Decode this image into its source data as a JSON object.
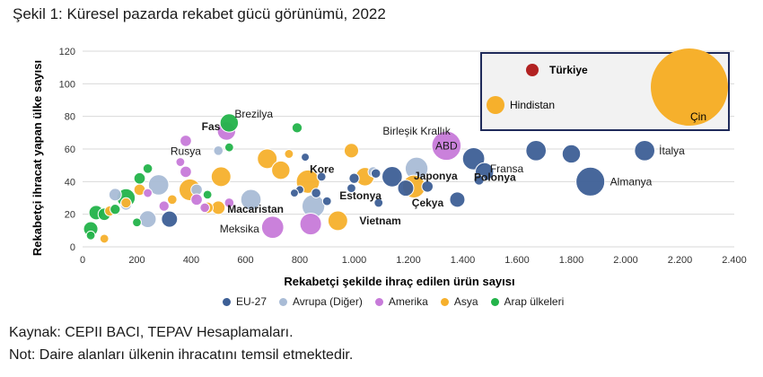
{
  "title": "Şekil 1: Küresel pazarda rekabet gücü görünümü, 2022",
  "source": "Kaynak: CEPII BACI, TEPAV Hesaplamaları.",
  "note": "Not: Daire alanları ülkenin ihracatını temsil etmektedir.",
  "colors": {
    "EU-27": "#3d5f96",
    "Avrupa (Diğer)": "#a9bcd6",
    "Amerika": "#c77ad9",
    "Asya": "#f6b02c",
    "Arap ülkeleri": "#23b34a",
    "Türkiye": "#b22222"
  },
  "legend": [
    {
      "key": "EU-27",
      "label": "EU-27"
    },
    {
      "key": "Avrupa (Diğer)",
      "label": "Avrupa (Diğer)"
    },
    {
      "key": "Amerika",
      "label": "Amerika"
    },
    {
      "key": "Asya",
      "label": "Asya"
    },
    {
      "key": "Arap ülkeleri",
      "label": "Arap ülkeleri"
    }
  ],
  "chart_data": {
    "type": "scatter",
    "xlabel": "Rekabetçi şekilde ihraç edilen ürün sayısı",
    "ylabel": "Rekabetçi ihracat yapan ülke sayısı",
    "xlim": [
      0,
      2400
    ],
    "ylim": [
      0,
      120
    ],
    "xticks": [
      "0",
      "200",
      "400",
      "600",
      "800",
      "1.000",
      "1.200",
      "1.400",
      "1.600",
      "1.800",
      "2.000",
      "2.200",
      "2.400"
    ],
    "yticks": [
      "0",
      "20",
      "40",
      "60",
      "80",
      "100",
      "120"
    ],
    "legend_position": "bottom",
    "inset": {
      "labels": [
        "Türkiye",
        "Hindistan",
        "Çin"
      ]
    },
    "points": [
      {
        "x": 1870,
        "y": 40,
        "size": 3.2,
        "group": "EU-27",
        "label": "Almanya"
      },
      {
        "x": 2070,
        "y": 59,
        "size": 1.6,
        "group": "EU-27",
        "label": "İtalya"
      },
      {
        "x": 1800,
        "y": 57,
        "size": 1.3,
        "group": "EU-27"
      },
      {
        "x": 1670,
        "y": 59,
        "size": 1.6,
        "group": "EU-27",
        "label": "Fransa"
      },
      {
        "x": 1480,
        "y": 46,
        "size": 1.3,
        "group": "EU-27",
        "label": "Polonya"
      },
      {
        "x": 1440,
        "y": 54,
        "size": 1.9,
        "group": "EU-27"
      },
      {
        "x": 1460,
        "y": 41,
        "size": 0.4,
        "group": "EU-27"
      },
      {
        "x": 1380,
        "y": 29,
        "size": 0.9,
        "group": "EU-27"
      },
      {
        "x": 1270,
        "y": 37,
        "size": 0.5,
        "group": "EU-27",
        "label": "Çekya"
      },
      {
        "x": 1140,
        "y": 43,
        "size": 1.6,
        "group": "EU-27"
      },
      {
        "x": 1190,
        "y": 36,
        "size": 1.0,
        "group": "EU-27"
      },
      {
        "x": 1080,
        "y": 45,
        "size": 0.35,
        "group": "EU-27"
      },
      {
        "x": 1000,
        "y": 42,
        "size": 0.4,
        "group": "EU-27"
      },
      {
        "x": 990,
        "y": 36,
        "size": 0.3,
        "group": "EU-27"
      },
      {
        "x": 900,
        "y": 28,
        "size": 0.3,
        "group": "EU-27"
      },
      {
        "x": 860,
        "y": 33,
        "size": 0.35,
        "group": "EU-27"
      },
      {
        "x": 880,
        "y": 43,
        "size": 0.3,
        "group": "EU-27"
      },
      {
        "x": 800,
        "y": 35,
        "size": 0.25,
        "group": "EU-27"
      },
      {
        "x": 780,
        "y": 33,
        "size": 0.25,
        "group": "EU-27"
      },
      {
        "x": 820,
        "y": 55,
        "size": 0.25,
        "group": "EU-27"
      },
      {
        "x": 1090,
        "y": 27,
        "size": 0.3,
        "group": "EU-27"
      },
      {
        "x": 320,
        "y": 17,
        "size": 1.0,
        "group": "EU-27"
      },
      {
        "x": 1230,
        "y": 48,
        "size": 2.0,
        "group": "Avrupa (Diğer)",
        "label": "Birleşik Krallık"
      },
      {
        "x": 620,
        "y": 29,
        "size": 1.6,
        "group": "Avrupa (Diğer)"
      },
      {
        "x": 850,
        "y": 25,
        "size": 2.0,
        "group": "Avrupa (Diğer)"
      },
      {
        "x": 280,
        "y": 38,
        "size": 1.6,
        "group": "Avrupa (Diğer)"
      },
      {
        "x": 240,
        "y": 17,
        "size": 1.1,
        "group": "Avrupa (Diğer)"
      },
      {
        "x": 500,
        "y": 59,
        "size": 0.35,
        "group": "Avrupa (Diğer)"
      },
      {
        "x": 1070,
        "y": 46,
        "size": 0.4,
        "group": "Avrupa (Diğer)"
      },
      {
        "x": 120,
        "y": 32,
        "size": 0.6,
        "group": "Avrupa (Diğer)"
      },
      {
        "x": 160,
        "y": 26,
        "size": 0.5,
        "group": "Avrupa (Diğer)"
      },
      {
        "x": 420,
        "y": 35,
        "size": 0.5,
        "group": "Avrupa (Diğer)"
      },
      {
        "x": 1340,
        "y": 62,
        "size": 3.3,
        "group": "Amerika",
        "label": "ABD"
      },
      {
        "x": 700,
        "y": 12,
        "size": 1.9,
        "group": "Amerika",
        "label": "Meksika"
      },
      {
        "x": 840,
        "y": 14,
        "size": 1.8,
        "group": "Amerika"
      },
      {
        "x": 530,
        "y": 71,
        "size": 1.3,
        "group": "Amerika",
        "label": "Brezilya"
      },
      {
        "x": 380,
        "y": 65,
        "size": 0.5,
        "group": "Amerika"
      },
      {
        "x": 380,
        "y": 46,
        "size": 0.5,
        "group": "Amerika"
      },
      {
        "x": 420,
        "y": 29,
        "size": 0.5,
        "group": "Amerika"
      },
      {
        "x": 300,
        "y": 25,
        "size": 0.4,
        "group": "Amerika"
      },
      {
        "x": 450,
        "y": 24,
        "size": 0.35,
        "group": "Amerika"
      },
      {
        "x": 240,
        "y": 33,
        "size": 0.3,
        "group": "Amerika"
      },
      {
        "x": 540,
        "y": 27,
        "size": 0.35,
        "group": "Amerika"
      },
      {
        "x": 830,
        "y": 40,
        "size": 2.1,
        "group": "Asya",
        "label": "Kore"
      },
      {
        "x": 1220,
        "y": 37,
        "size": 2.0,
        "group": "Asya",
        "label": "Japonya"
      },
      {
        "x": 940,
        "y": 16,
        "size": 1.5,
        "group": "Asya",
        "label": "Vietnam"
      },
      {
        "x": 680,
        "y": 54,
        "size": 1.5,
        "group": "Asya"
      },
      {
        "x": 730,
        "y": 47,
        "size": 1.3,
        "group": "Asya"
      },
      {
        "x": 510,
        "y": 43,
        "size": 1.5,
        "group": "Asya",
        "label": "Macaristan"
      },
      {
        "x": 395,
        "y": 35,
        "size": 1.8,
        "group": "Asya"
      },
      {
        "x": 1040,
        "y": 43,
        "size": 1.3,
        "group": "Asya",
        "label": "Estonya"
      },
      {
        "x": 990,
        "y": 59,
        "size": 0.8,
        "group": "Asya"
      },
      {
        "x": 500,
        "y": 24,
        "size": 0.7,
        "group": "Asya"
      },
      {
        "x": 460,
        "y": 24,
        "size": 0.5,
        "group": "Asya"
      },
      {
        "x": 210,
        "y": 35,
        "size": 0.5,
        "group": "Asya"
      },
      {
        "x": 160,
        "y": 27,
        "size": 0.4,
        "group": "Asya"
      },
      {
        "x": 100,
        "y": 22,
        "size": 0.4,
        "group": "Asya"
      },
      {
        "x": 330,
        "y": 29,
        "size": 0.35,
        "group": "Asya"
      },
      {
        "x": 80,
        "y": 5,
        "size": 0.3,
        "group": "Asya"
      },
      {
        "x": 760,
        "y": 57,
        "size": 0.3,
        "group": "Asya"
      },
      {
        "x": 540,
        "y": 76,
        "size": 1.3,
        "group": "Arap ülkeleri",
        "label": "Fas"
      },
      {
        "x": 160,
        "y": 30,
        "size": 1.3,
        "group": "Arap ülkeleri"
      },
      {
        "x": 50,
        "y": 21,
        "size": 0.8,
        "group": "Arap ülkeleri"
      },
      {
        "x": 30,
        "y": 11,
        "size": 0.8,
        "group": "Arap ülkeleri"
      },
      {
        "x": 80,
        "y": 20,
        "size": 0.6,
        "group": "Arap ülkeleri"
      },
      {
        "x": 210,
        "y": 42,
        "size": 0.5,
        "group": "Arap ülkeleri"
      },
      {
        "x": 790,
        "y": 73,
        "size": 0.4,
        "group": "Arap ülkeleri"
      },
      {
        "x": 120,
        "y": 23,
        "size": 0.4,
        "group": "Arap ülkeleri"
      },
      {
        "x": 240,
        "y": 48,
        "size": 0.35,
        "group": "Arap ülkeleri"
      },
      {
        "x": 200,
        "y": 15,
        "size": 0.3,
        "group": "Arap ülkeleri"
      },
      {
        "x": 540,
        "y": 61,
        "size": 0.3,
        "group": "Arap ülkeleri"
      },
      {
        "x": 460,
        "y": 32,
        "size": 0.3,
        "group": "Arap ülkeleri"
      },
      {
        "x": 30,
        "y": 7,
        "size": 0.3,
        "group": "Arap ülkeleri"
      },
      {
        "x": 360,
        "y": 52,
        "size": 0.3,
        "group": "Rusya",
        "label": "Rusya"
      }
    ]
  }
}
